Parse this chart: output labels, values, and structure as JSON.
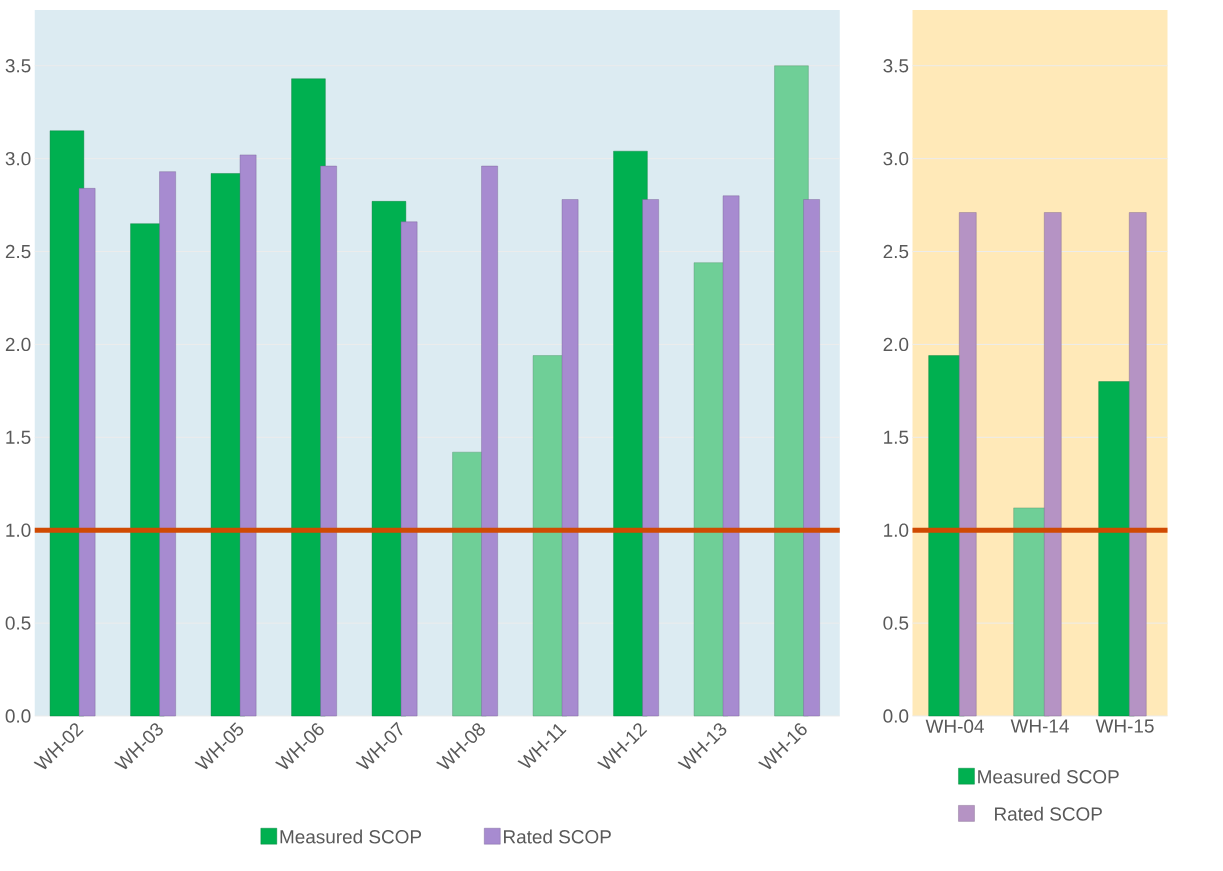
{
  "chart_data": [
    {
      "type": "bar",
      "categories": [
        "WH-02",
        "WH-03",
        "WH-05",
        "WH-06",
        "WH-07",
        "WH-08",
        "WH-11",
        "WH-12",
        "WH-13",
        "WH-16"
      ],
      "series": [
        {
          "name": "Measured SCOP",
          "color": "#00b050",
          "colors": [
            "#00b050",
            "#00b050",
            "#00b050",
            "#00b050",
            "#00b050",
            "#6fcf97",
            "#6fcf97",
            "#00b050",
            "#6fcf97",
            "#6fcf97"
          ],
          "values": [
            3.15,
            2.65,
            2.92,
            3.43,
            2.77,
            1.42,
            1.94,
            3.04,
            2.44,
            3.5
          ]
        },
        {
          "name": "Rated SCOP",
          "color": "#a78bd0",
          "values": [
            2.84,
            2.93,
            3.02,
            2.96,
            2.66,
            2.96,
            2.78,
            2.78,
            2.8,
            2.78
          ]
        }
      ],
      "ylim": [
        0,
        3.8
      ],
      "yticks": [
        {
          "value": 0,
          "label": "0.0"
        },
        {
          "value": 0.5,
          "label": "0.5"
        },
        {
          "value": 1,
          "label": "1.0"
        },
        {
          "value": 1.5,
          "label": "1.5"
        },
        {
          "value": 2,
          "label": "2.0"
        },
        {
          "value": 2.5,
          "label": "2.5"
        },
        {
          "value": 3,
          "label": "3.0"
        },
        {
          "value": 3.5,
          "label": "3.5"
        }
      ],
      "grid": "y",
      "legend": "bottom",
      "ref_lines": [
        {
          "axis": "y",
          "value": 1,
          "color": "#d04a02"
        }
      ]
    },
    {
      "type": "bar",
      "categories": [
        "WH-04",
        "WH-14",
        "WH-15"
      ],
      "series": [
        {
          "name": "Measured SCOP",
          "color": "#00b050",
          "colors": [
            "#00b050",
            "#6fcf97",
            "#00b050"
          ],
          "values": [
            1.94,
            1.12,
            1.8
          ]
        },
        {
          "name": "Rated SCOP",
          "color": "#b593c4",
          "values": [
            2.71,
            2.71,
            2.71
          ]
        }
      ],
      "ylim": [
        0,
        3.8
      ],
      "yticks": [
        {
          "value": 0,
          "label": "0.0"
        },
        {
          "value": 0.5,
          "label": "0.5"
        },
        {
          "value": 1,
          "label": "1.0"
        },
        {
          "value": 1.5,
          "label": "1.5"
        },
        {
          "value": 2,
          "label": "2.0"
        },
        {
          "value": 2.5,
          "label": "2.5"
        },
        {
          "value": 3,
          "label": "3.0"
        },
        {
          "value": 3.5,
          "label": "3.5"
        }
      ],
      "grid": "y",
      "legend": "bottom",
      "ref_lines": [
        {
          "axis": "y",
          "value": 1,
          "color": "#d04a02"
        }
      ]
    }
  ]
}
